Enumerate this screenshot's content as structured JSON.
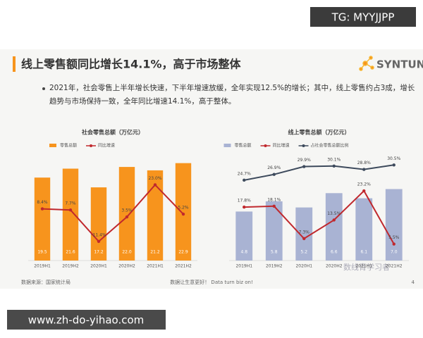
{
  "slide": {
    "watermark_top": "TG: MYYJJPP",
    "title": "线上零售额同比增长14.1%，高于市场整体",
    "logo": "SYNTUN",
    "bullet": "2021年，社会零售上半年增长快速，下半年增速放缓，全年实现12.5%的增长；其中，线上零售约占3成，增长趋势与市场保持一致，全年同比增速14.1%，高于整体。",
    "source": "数据来源：国家统计局",
    "footer": "数据让生意更好！ Data turn biz on!",
    "page": "4",
    "watermark_account": "数线青学习者",
    "watermark_bottom": "www.zh-do-yihao.com"
  },
  "chart_data": [
    {
      "type": "combo",
      "title": "社会零售总额（万亿元）",
      "categories": [
        "2019H1",
        "2019H2",
        "2020H1",
        "2020H2",
        "2021H1",
        "2021H2"
      ],
      "ylim": [
        0,
        24
      ],
      "y2lim": [
        -23,
        39
      ],
      "series": [
        {
          "name": "零售总额",
          "type": "bar",
          "color": "#f7941d",
          "values": [
            19.5,
            21.6,
            17.2,
            22.0,
            21.2,
            22.9
          ],
          "value_labels": [
            "19.5",
            "21.6",
            "17.2",
            "22.0",
            "21.2",
            "22.9"
          ]
        },
        {
          "name": "同比增速",
          "type": "line",
          "axis": "y2",
          "color": "#c0282d",
          "values": [
            8.4,
            7.7,
            -11.4,
            3.5,
            23.0,
            5.2
          ],
          "value_labels": [
            "8.4%",
            "7.7%",
            "-11.4%",
            "3.5%",
            "23.0%",
            "5.2%"
          ]
        }
      ]
    },
    {
      "type": "combo",
      "title": "线上零售总额（万亿元）",
      "categories": [
        "2019H1",
        "2019H2",
        "2020H1",
        "2020H2",
        "2021H1",
        "2021H2"
      ],
      "ylim": [
        0,
        10
      ],
      "y2lim": [
        0,
        34
      ],
      "y3lim": [
        -6,
        33
      ],
      "series": [
        {
          "name": "零售总额",
          "type": "bar",
          "color": "#a9b3d3",
          "values": [
            4.8,
            5.8,
            5.2,
            6.6,
            6.1,
            7.0
          ],
          "value_labels": [
            "4.8",
            "5.8",
            "5.2",
            "6.6",
            "6.1",
            "7.0"
          ]
        },
        {
          "name": "同比增速",
          "type": "line",
          "axis": "y2",
          "color": "#c0282d",
          "values": [
            17.8,
            18.1,
            7.3,
            13.5,
            23.2,
            5.5
          ],
          "value_labels": [
            "17.8%",
            "18.1%",
            "7.3%",
            "13.5%",
            "23.2%",
            "5.5%"
          ]
        },
        {
          "name": "占社会零售总额比例",
          "type": "line",
          "axis": "y3",
          "color": "#3d4a5c",
          "values": [
            24.7,
            26.9,
            29.9,
            30.1,
            28.8,
            30.5
          ],
          "value_labels": [
            "24.7%",
            "26.9%",
            "29.9%",
            "30.1%",
            "28.8%",
            "30.5%"
          ]
        }
      ]
    }
  ]
}
